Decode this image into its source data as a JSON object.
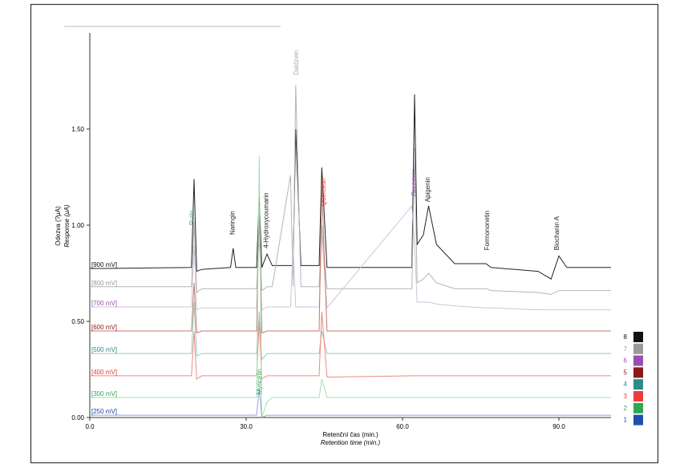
{
  "chart_data": {
    "type": "line",
    "x_label": "Retenční čas (min.)",
    "x_label_en": "Retention time (min.)",
    "y_label": "Odezva (?μA)",
    "y_label_en": "Response (μA)",
    "xlim": [
      0,
      100
    ],
    "ylim": [
      0,
      2.0
    ],
    "xticks": [
      {
        "value": 0,
        "label": "0.0"
      },
      {
        "value": 30,
        "label": "30.0"
      },
      {
        "value": 60,
        "label": "60.0"
      },
      {
        "value": 90,
        "label": "90.0"
      }
    ],
    "yticks": [
      {
        "value": 0,
        "label": "0.00"
      },
      {
        "value": 0.5,
        "label": "0.50"
      },
      {
        "value": 1.0,
        "label": "1.00"
      },
      {
        "value": 1.5,
        "label": "1.50"
      }
    ],
    "x": [
      0,
      3,
      19.5,
      20,
      20.5,
      21.5,
      27,
      27.5,
      28,
      32,
      32.5,
      33,
      34,
      35,
      38.5,
      39,
      39.5,
      40.5,
      44,
      44.5,
      45.5,
      61.8,
      62.3,
      62.8,
      64,
      65,
      66.5,
      70,
      76,
      77,
      86,
      88.5,
      90,
      91.5,
      100
    ],
    "series": [
      {
        "name": "[900 mV]",
        "legend_label": "8",
        "color": "#222222",
        "label_color": "#111111",
        "values": [
          0.775,
          0.775,
          0.78,
          1.24,
          0.76,
          0.77,
          0.78,
          0.88,
          0.78,
          0.78,
          1.15,
          0.78,
          0.85,
          0.79,
          0.79,
          0.79,
          1.5,
          0.79,
          0.79,
          1.3,
          0.78,
          0.78,
          1.68,
          0.9,
          0.95,
          1.1,
          0.9,
          0.8,
          0.8,
          0.78,
          0.76,
          0.72,
          0.84,
          0.78,
          0.78
        ]
      },
      {
        "name": "[800 mV]",
        "legend_label": "7",
        "color": "#b5b5b5",
        "label_color": "#999999",
        "values": [
          0.68,
          0.68,
          0.68,
          1.02,
          0.65,
          0.67,
          0.67,
          0.67,
          0.67,
          0.67,
          1.0,
          0.66,
          0.68,
          0.68,
          1.26,
          0.68,
          1.73,
          0.68,
          0.68,
          1.0,
          0.67,
          0.67,
          1.4,
          0.7,
          0.72,
          0.75,
          0.7,
          0.67,
          0.67,
          0.66,
          0.65,
          0.64,
          0.66,
          0.66,
          0.66
        ]
      },
      {
        "name": "[700 mV]",
        "legend_label": "6",
        "color": "#d2c2da",
        "label_color": "#9a4fb0",
        "values": [
          0.575,
          0.575,
          0.575,
          0.9,
          0.56,
          0.57,
          0.57,
          0.57,
          0.57,
          0.57,
          0.95,
          0.56,
          0.575,
          0.575,
          0.575,
          0.9,
          0.575,
          0.575,
          0.575,
          0.95,
          0.57,
          1.1,
          0.9,
          0.6,
          0.6,
          0.6,
          0.59,
          0.58,
          0.57,
          0.57,
          0.56,
          0.56,
          0.56,
          0.56,
          0.56
        ]
      },
      {
        "name": "[600 mV]",
        "legend_label": "5",
        "color": "#c47a6a",
        "label_color": "#8b1a1a",
        "values": [
          0.45,
          0.45,
          0.45,
          0.7,
          0.44,
          0.45,
          0.45,
          0.45,
          0.45,
          0.45,
          1.1,
          0.44,
          0.45,
          0.45,
          0.45,
          0.45,
          0.45,
          0.45,
          0.45,
          1.2,
          0.45,
          0.45,
          0.45,
          0.45,
          0.45,
          0.45,
          0.45,
          0.45,
          0.45,
          0.45,
          0.45,
          0.45,
          0.45,
          0.45,
          0.45
        ]
      },
      {
        "name": "[500 mV]",
        "legend_label": "4",
        "color": "#9cc7c4",
        "label_color": "#2e8b87",
        "values": [
          0.333,
          0.333,
          0.333,
          0.6,
          0.32,
          0.333,
          0.333,
          0.333,
          0.333,
          0.333,
          0.55,
          0.3,
          0.333,
          0.333,
          0.333,
          0.333,
          0.333,
          0.333,
          0.333,
          0.45,
          0.333,
          0.333,
          0.333,
          0.333,
          0.333,
          0.333,
          0.333,
          0.333,
          0.333,
          0.333,
          0.333,
          0.333,
          0.333,
          0.333,
          0.333
        ]
      },
      {
        "name": "[400 mV]",
        "legend_label": "3",
        "color": "#ec8a80",
        "label_color": "#e23b2e",
        "values": [
          0.217,
          0.217,
          0.217,
          0.45,
          0.2,
          0.217,
          0.217,
          0.217,
          0.217,
          0.217,
          0.5,
          0.2,
          0.217,
          0.217,
          0.217,
          0.217,
          0.217,
          0.217,
          0.217,
          0.55,
          0.21,
          0.217,
          0.217,
          0.217,
          0.217,
          0.217,
          0.217,
          0.217,
          0.217,
          0.217,
          0.217,
          0.217,
          0.217,
          0.217,
          0.217
        ]
      },
      {
        "name": "[300 mV]",
        "legend_label": "2",
        "color": "#a8dcb6",
        "label_color": "#2fa84f",
        "values": [
          0.104,
          0.104,
          0.104,
          0.104,
          0.104,
          0.104,
          0.104,
          0.104,
          0.104,
          0.104,
          1.36,
          0.0,
          0.08,
          0.104,
          0.104,
          0.104,
          0.104,
          0.104,
          0.104,
          0.2,
          0.104,
          0.104,
          0.104,
          0.104,
          0.104,
          0.104,
          0.104,
          0.104,
          0.104,
          0.104,
          0.104,
          0.104,
          0.104,
          0.104,
          0.104
        ]
      },
      {
        "name": "[250 mV]",
        "legend_label": "1",
        "color": "#8ea4d6",
        "label_color": "#1f3f9f",
        "values": [
          0.012,
          0.012,
          0.012,
          0.012,
          0.012,
          0.012,
          0.012,
          0.012,
          0.012,
          0.012,
          0.15,
          0.0,
          0.012,
          0.012,
          0.012,
          0.012,
          0.012,
          0.012,
          0.012,
          0.012,
          0.012,
          0.012,
          0.012,
          0.012,
          0.012,
          0.012,
          0.012,
          0.012,
          0.012,
          0.012,
          0.012,
          0.012,
          0.012,
          0.012,
          0.012
        ]
      }
    ],
    "legend_colors": [
      "#111111",
      "#9a9a9a",
      "#9a4fb0",
      "#8b1a1a",
      "#2e8b87",
      "#ee3b3b",
      "#2fa84f",
      "#1f4fb0"
    ],
    "annotations": [
      {
        "text": "Rutin",
        "x": 20,
        "y": 1.0,
        "color": "#3aa5a0"
      },
      {
        "text": "Naringin",
        "x": 27.8,
        "y": 0.95,
        "color": "#222222"
      },
      {
        "text": "4-Hydroxycoumarin",
        "x": 34.2,
        "y": 0.88,
        "color": "#222222"
      },
      {
        "text": "Daidzein",
        "x": 40,
        "y": 1.78,
        "color": "#aaaaaa"
      },
      {
        "text": "Quercetin",
        "x": 45.2,
        "y": 1.1,
        "color": "#e23b2e"
      },
      {
        "text": "Genistein",
        "x": 62.6,
        "y": 1.15,
        "color": "#9a4fb0"
      },
      {
        "text": "Apigenin",
        "x": 65.2,
        "y": 1.12,
        "color": "#222222"
      },
      {
        "text": "Formononetin",
        "x": 76.6,
        "y": 0.87,
        "color": "#222222",
        "big": true
      },
      {
        "text": "Biochanin A",
        "x": 90,
        "y": 0.87,
        "color": "#222222"
      },
      {
        "text": "Myricetin",
        "x": 32.9,
        "y": 0.12,
        "color": "#2fa84f"
      }
    ]
  }
}
